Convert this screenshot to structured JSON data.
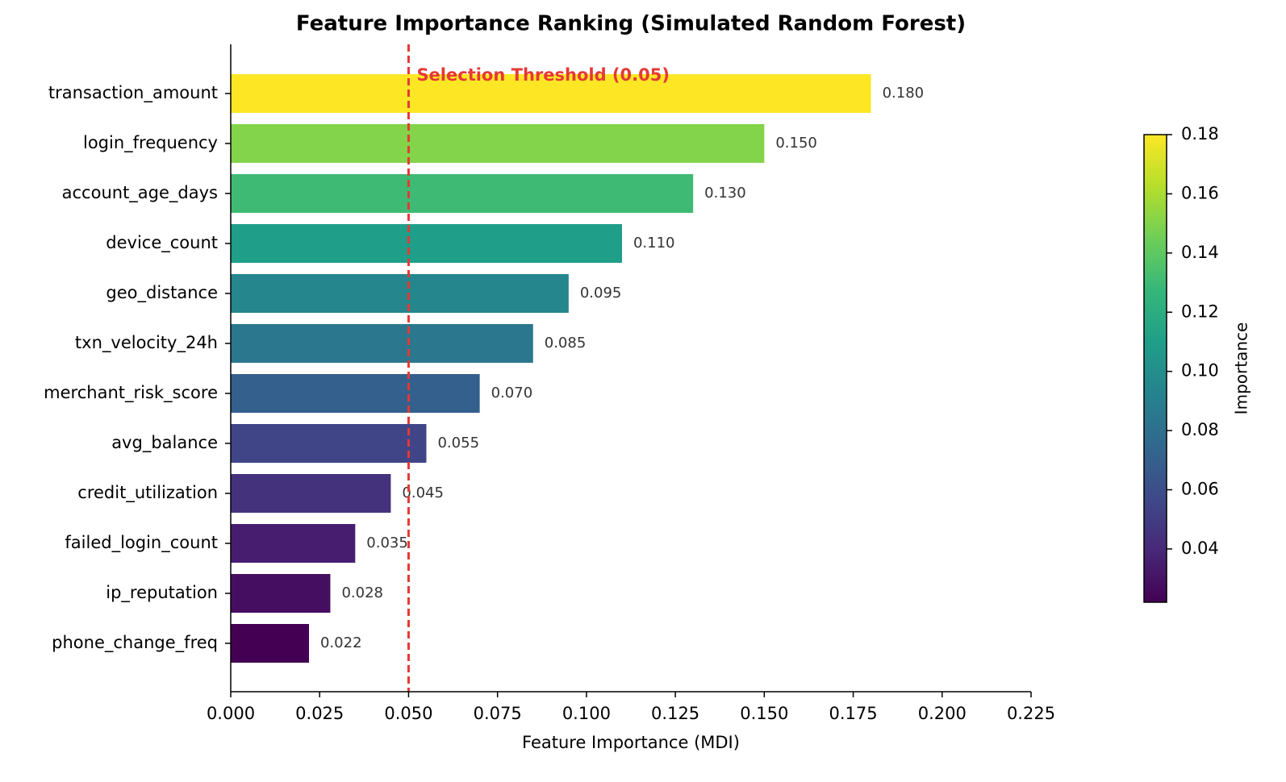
{
  "chart_data": {
    "type": "barh",
    "title": "Feature Importance Ranking (Simulated Random Forest)",
    "xlabel": "Feature Importance (MDI)",
    "categories": [
      "transaction_amount",
      "login_frequency",
      "account_age_days",
      "device_count",
      "geo_distance",
      "txn_velocity_24h",
      "merchant_risk_score",
      "avg_balance",
      "credit_utilization",
      "failed_login_count",
      "ip_reputation",
      "phone_change_freq"
    ],
    "values": [
      0.18,
      0.15,
      0.13,
      0.11,
      0.095,
      0.085,
      0.07,
      0.055,
      0.045,
      0.035,
      0.028,
      0.022
    ],
    "value_labels": [
      "0.180",
      "0.150",
      "0.130",
      "0.110",
      "0.095",
      "0.085",
      "0.070",
      "0.055",
      "0.045",
      "0.035",
      "0.028",
      "0.022"
    ],
    "xlim": [
      0,
      0.225
    ],
    "xticks": [
      {
        "value": 0,
        "label": "0.000"
      },
      {
        "value": 0.025,
        "label": "0.025"
      },
      {
        "value": 0.05,
        "label": "0.050"
      },
      {
        "value": 0.075,
        "label": "0.075"
      },
      {
        "value": 0.1,
        "label": "0.100"
      },
      {
        "value": 0.125,
        "label": "0.125"
      },
      {
        "value": 0.15,
        "label": "0.150"
      },
      {
        "value": 0.175,
        "label": "0.175"
      },
      {
        "value": 0.2,
        "label": "0.200"
      },
      {
        "value": 0.225,
        "label": "0.225"
      }
    ],
    "colormap": "viridis",
    "colorbar_label": "Importance",
    "clim": [
      0.022,
      0.18
    ],
    "cticks": [
      0.04,
      0.06,
      0.08,
      {
        "value": 0.1,
        "label": "0.10"
      },
      0.12,
      0.14,
      0.16,
      0.18
    ],
    "threshold": 0.05,
    "threshold_color": "#e53935",
    "threshold_label": "Selection Threshold (0.05)"
  }
}
